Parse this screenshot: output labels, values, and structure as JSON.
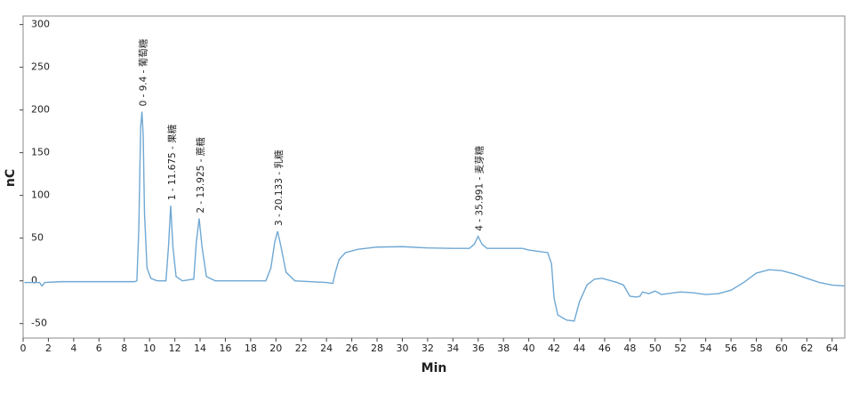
{
  "chart_data": {
    "type": "line",
    "x_label": "Min",
    "y_label": "nC",
    "xlim": [
      0,
      65
    ],
    "ylim": [
      -67,
      310
    ],
    "xticks": [
      0,
      2,
      4,
      6,
      8,
      10,
      12,
      14,
      16,
      18,
      20,
      22,
      24,
      26,
      28,
      30,
      32,
      34,
      36,
      38,
      40,
      42,
      44,
      46,
      48,
      50,
      52,
      54,
      56,
      58,
      60,
      62,
      64
    ],
    "yticks": [
      -50,
      0,
      50,
      100,
      150,
      200,
      250,
      300
    ],
    "grid": false,
    "series": [
      {
        "color": "#6fa8d4",
        "x": [
          0.1,
          1.3,
          1.5,
          1.7,
          3,
          8.8,
          9.0,
          9.15,
          9.3,
          9.4,
          9.5,
          9.6,
          9.8,
          10.1,
          10.6,
          11.3,
          11.5,
          11.675,
          11.85,
          12.1,
          12.6,
          13.5,
          13.7,
          13.925,
          14.15,
          14.5,
          15.2,
          19.2,
          19.6,
          19.9,
          20.133,
          20.4,
          20.8,
          21.5,
          24,
          24.5,
          24.7,
          25,
          25.5,
          26.5,
          28,
          30,
          32,
          34,
          35.3,
          35.7,
          35.991,
          36.3,
          36.7,
          39.5,
          40,
          41.5,
          41.8,
          42,
          42.3,
          43,
          43.6,
          44,
          44.6,
          45.2,
          45.8,
          47,
          47.5,
          48,
          48.5,
          48.8,
          49,
          49.5,
          50,
          50.5,
          51,
          52,
          53,
          54,
          55,
          56,
          57,
          58,
          59,
          60,
          61,
          62,
          63,
          64,
          65
        ],
        "values": [
          -2,
          -2,
          -6,
          -2,
          -1,
          -1,
          0,
          60,
          180,
          198,
          170,
          80,
          15,
          3,
          0,
          0,
          40,
          88,
          40,
          5,
          0,
          2,
          45,
          73,
          40,
          5,
          0,
          0,
          15,
          45,
          58,
          40,
          10,
          0,
          -2,
          -3,
          10,
          25,
          33,
          37,
          39.5,
          40,
          38.5,
          38,
          38,
          43,
          52,
          43,
          38,
          38,
          36,
          33,
          20,
          -20,
          -40,
          -46,
          -47,
          -25,
          -5,
          2,
          3,
          -2,
          -5,
          -18,
          -19,
          -18,
          -13,
          -15,
          -12,
          -16,
          -15,
          -13,
          -14,
          -16,
          -15,
          -11,
          -2,
          9,
          13,
          12,
          8,
          3,
          -2,
          -5,
          -6
        ]
      }
    ],
    "annotations": [
      {
        "text": "0 - 9.4 - 葡萄糖",
        "x": 9.4,
        "y": 198
      },
      {
        "text": "1 - 11.675 - 果糖",
        "x": 11.675,
        "y": 88
      },
      {
        "text": "2 - 13.925 - 蔗糖",
        "x": 13.925,
        "y": 73
      },
      {
        "text": "3 - 20.133 - 乳糖",
        "x": 20.133,
        "y": 58
      },
      {
        "text": "4 - 35.991 - 麦芽糖",
        "x": 35.991,
        "y": 52
      }
    ]
  }
}
